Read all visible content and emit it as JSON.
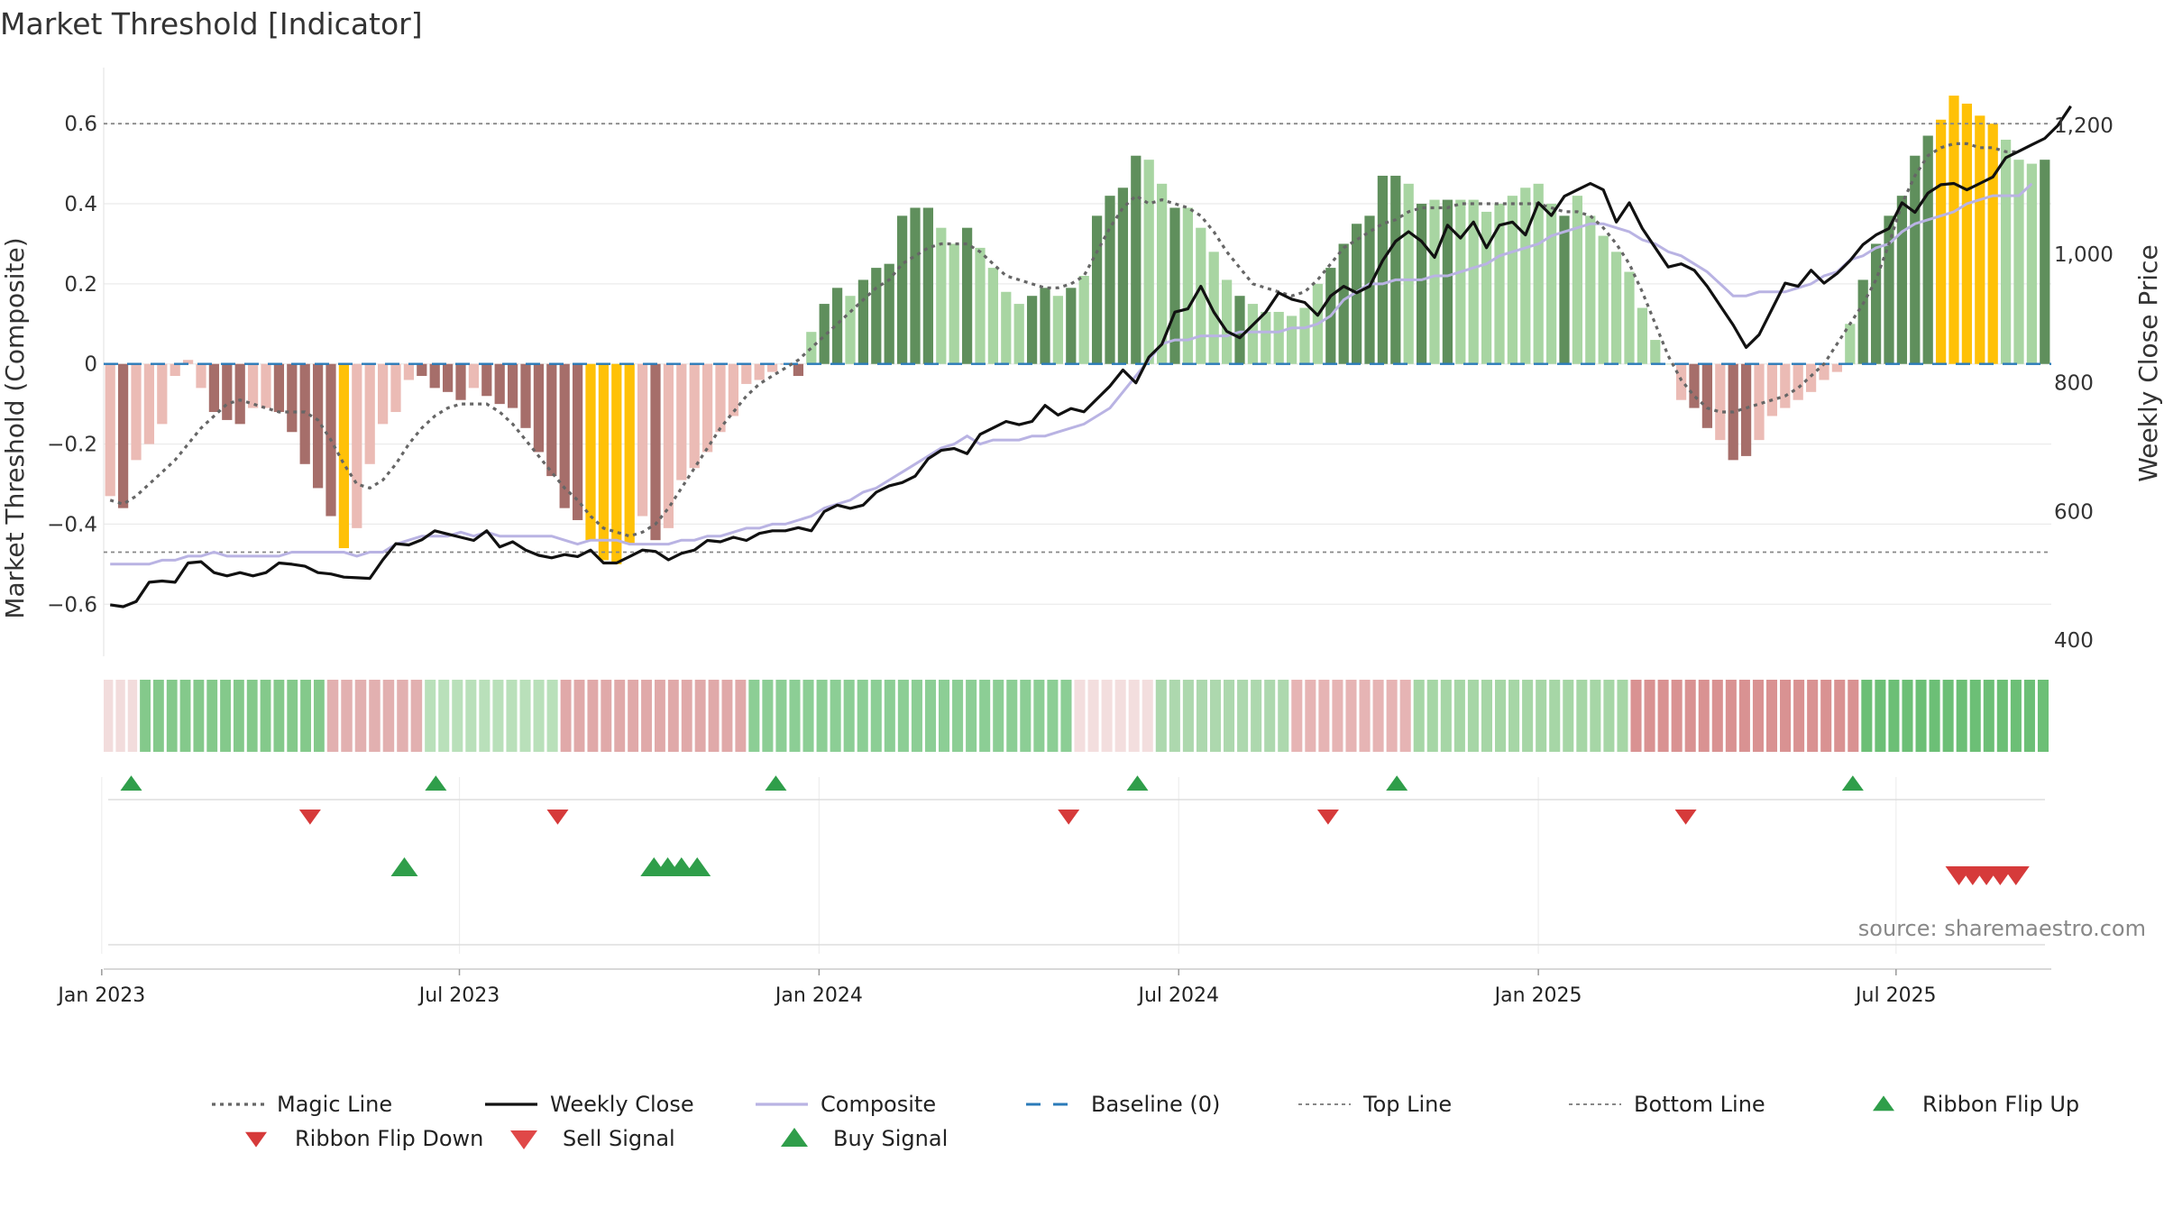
{
  "chart_data": {
    "type": "bar",
    "title": "Market Threshold [Indicator]",
    "ylabel": "Market Threshold (Composite)",
    "y2label": "Weekly Close Price",
    "ylim": [
      -0.73,
      0.74
    ],
    "y2lim": [
      375,
      1290
    ],
    "yticks": [
      -0.6,
      -0.4,
      -0.2,
      0,
      0.2,
      0.4,
      0.6
    ],
    "ytick_labels": [
      "−0.6",
      "−0.4",
      "−0.2",
      "0",
      "0.2",
      "0.4",
      "0.6"
    ],
    "y2ticks": [
      400,
      600,
      800,
      1000,
      1200
    ],
    "y2tick_labels": [
      "400",
      "600",
      "800",
      "1,000",
      "1,200"
    ],
    "x_start": "2023-01-01",
    "x_end": "2025-09-18",
    "xticks": [
      "2022-12-31",
      "2023-07-01",
      "2023-12-31",
      "2024-07-01",
      "2024-12-31",
      "2025-07-01"
    ],
    "xtick_labels": [
      "Jan 2023",
      "Jul 2023",
      "Jan 2024",
      "Jul 2024",
      "Jan 2025",
      "Jul 2025"
    ],
    "top_line": 0.6,
    "bottom_line": -0.47,
    "baseline": 0,
    "grid": true,
    "legend_position": "bottom",
    "source": "source: sharemaestro.com",
    "colors": {
      "bullish_strong": "#5f8f5c",
      "bullish_weak": "#a8d5a2",
      "bearish_strong": "#a66e6a",
      "bearish_weak": "#ebbbb5",
      "extreme": "#ffc107",
      "weekly_close": "#111111",
      "magic_line": "#666666",
      "composite": "#b9b3e3",
      "baseline": "#2b7bb9",
      "buy": "#2f9e4a",
      "sell": "#d63a3a"
    },
    "composite_bars": [
      -0.33,
      -0.36,
      -0.24,
      -0.2,
      -0.15,
      -0.03,
      0.01,
      -0.06,
      -0.12,
      -0.14,
      -0.15,
      -0.11,
      -0.11,
      -0.12,
      -0.17,
      -0.25,
      -0.31,
      -0.38,
      -0.46,
      -0.41,
      -0.25,
      -0.15,
      -0.12,
      -0.04,
      -0.03,
      -0.06,
      -0.07,
      -0.09,
      -0.06,
      -0.08,
      -0.1,
      -0.11,
      -0.16,
      -0.22,
      -0.28,
      -0.36,
      -0.39,
      -0.44,
      -0.49,
      -0.5,
      -0.45,
      -0.38,
      -0.44,
      -0.41,
      -0.29,
      -0.26,
      -0.22,
      -0.17,
      -0.13,
      -0.05,
      -0.04,
      -0.02,
      0.0,
      -0.03,
      0.08,
      0.15,
      0.19,
      0.17,
      0.21,
      0.24,
      0.25,
      0.37,
      0.39,
      0.39,
      0.34,
      0.3,
      0.34,
      0.29,
      0.24,
      0.18,
      0.15,
      0.17,
      0.19,
      0.17,
      0.19,
      0.22,
      0.37,
      0.42,
      0.44,
      0.52,
      0.51,
      0.45,
      0.39,
      0.39,
      0.34,
      0.28,
      0.21,
      0.17,
      0.15,
      0.13,
      0.13,
      0.12,
      0.14,
      0.2,
      0.24,
      0.3,
      0.35,
      0.37,
      0.47,
      0.47,
      0.45,
      0.4,
      0.41,
      0.41,
      0.41,
      0.41,
      0.38,
      0.4,
      0.42,
      0.44,
      0.45,
      0.4,
      0.37,
      0.42,
      0.37,
      0.32,
      0.28,
      0.23,
      0.14,
      0.06,
      0.0,
      -0.09,
      -0.11,
      -0.16,
      -0.19,
      -0.24,
      -0.23,
      -0.19,
      -0.13,
      -0.11,
      -0.09,
      -0.07,
      -0.04,
      -0.02,
      0.1,
      0.21,
      0.3,
      0.37,
      0.42,
      0.52,
      0.57,
      0.61,
      0.67,
      0.65,
      0.62,
      0.6,
      0.56,
      0.51,
      0.5,
      0.51
    ],
    "bar_class": [
      "bw",
      "bs",
      "bw",
      "bw",
      "bw",
      "bw",
      "bw",
      "bw",
      "bs",
      "bs",
      "bs",
      "bw",
      "bw",
      "bs",
      "bs",
      "bs",
      "bs",
      "bs",
      "ex",
      "bw",
      "bw",
      "bw",
      "bw",
      "bw",
      "bs",
      "bs",
      "bs",
      "bs",
      "bw",
      "bs",
      "bs",
      "bs",
      "bs",
      "bs",
      "bs",
      "bs",
      "bs",
      "ex",
      "ex",
      "ex",
      "ex",
      "bw",
      "bs",
      "bw",
      "bw",
      "bw",
      "bw",
      "bw",
      "bw",
      "bw",
      "bw",
      "bw",
      "bs",
      "bs",
      "gw",
      "gs",
      "gs",
      "gw",
      "gs",
      "gs",
      "gs",
      "gs",
      "gs",
      "gs",
      "gw",
      "gw",
      "gs",
      "gw",
      "gw",
      "gw",
      "gw",
      "gs",
      "gs",
      "gw",
      "gs",
      "gw",
      "gs",
      "gs",
      "gs",
      "gs",
      "gw",
      "gw",
      "gs",
      "gw",
      "gw",
      "gw",
      "gw",
      "gs",
      "gw",
      "gw",
      "gw",
      "gw",
      "gw",
      "gw",
      "gs",
      "gs",
      "gs",
      "gs",
      "gs",
      "gs",
      "gw",
      "gs",
      "gw",
      "gs",
      "gw",
      "gw",
      "gw",
      "gw",
      "gw",
      "gw",
      "gw",
      "gw",
      "gs",
      "gw",
      "gw",
      "gw",
      "gw",
      "gw",
      "gw",
      "gw",
      "gw",
      "bw",
      "bs",
      "bs",
      "bw",
      "bs",
      "bs",
      "bw",
      "bw",
      "bw",
      "bw",
      "bw",
      "bw",
      "bw",
      "gw",
      "gs",
      "gs",
      "gs",
      "gs",
      "gs",
      "gs",
      "ex",
      "ex",
      "ex",
      "ex",
      "ex",
      "gw",
      "gw",
      "gw",
      "gs"
    ],
    "magic_line": [
      -0.34,
      -0.35,
      -0.33,
      -0.3,
      -0.27,
      -0.24,
      -0.2,
      -0.16,
      -0.13,
      -0.1,
      -0.09,
      -0.1,
      -0.11,
      -0.12,
      -0.12,
      -0.12,
      -0.14,
      -0.19,
      -0.25,
      -0.3,
      -0.31,
      -0.29,
      -0.25,
      -0.2,
      -0.16,
      -0.13,
      -0.11,
      -0.1,
      -0.1,
      -0.1,
      -0.12,
      -0.15,
      -0.19,
      -0.23,
      -0.27,
      -0.31,
      -0.34,
      -0.38,
      -0.41,
      -0.42,
      -0.43,
      -0.42,
      -0.4,
      -0.36,
      -0.31,
      -0.26,
      -0.21,
      -0.16,
      -0.12,
      -0.08,
      -0.05,
      -0.03,
      -0.01,
      0.01,
      0.04,
      0.07,
      0.1,
      0.13,
      0.16,
      0.19,
      0.21,
      0.25,
      0.27,
      0.29,
      0.3,
      0.3,
      0.3,
      0.28,
      0.25,
      0.22,
      0.21,
      0.2,
      0.19,
      0.19,
      0.2,
      0.22,
      0.28,
      0.34,
      0.39,
      0.42,
      0.4,
      0.41,
      0.4,
      0.39,
      0.37,
      0.33,
      0.28,
      0.24,
      0.2,
      0.19,
      0.18,
      0.17,
      0.18,
      0.21,
      0.25,
      0.29,
      0.31,
      0.33,
      0.35,
      0.36,
      0.38,
      0.39,
      0.39,
      0.39,
      0.4,
      0.4,
      0.4,
      0.4,
      0.4,
      0.4,
      0.4,
      0.39,
      0.38,
      0.38,
      0.37,
      0.34,
      0.3,
      0.25,
      0.18,
      0.1,
      0.02,
      -0.04,
      -0.08,
      -0.11,
      -0.12,
      -0.12,
      -0.11,
      -0.1,
      -0.09,
      -0.08,
      -0.06,
      -0.03,
      0.0,
      0.05,
      0.1,
      0.15,
      0.21,
      0.3,
      0.4,
      0.47,
      0.52,
      0.54,
      0.55,
      0.55,
      0.54,
      0.54,
      0.53,
      0.53
    ],
    "composite_line": [
      -0.5,
      -0.5,
      -0.5,
      -0.5,
      -0.49,
      -0.49,
      -0.48,
      -0.48,
      -0.47,
      -0.48,
      -0.48,
      -0.48,
      -0.48,
      -0.48,
      -0.47,
      -0.47,
      -0.47,
      -0.47,
      -0.47,
      -0.48,
      -0.47,
      -0.47,
      -0.45,
      -0.44,
      -0.43,
      -0.43,
      -0.43,
      -0.42,
      -0.43,
      -0.42,
      -0.43,
      -0.43,
      -0.43,
      -0.43,
      -0.43,
      -0.44,
      -0.45,
      -0.44,
      -0.44,
      -0.44,
      -0.45,
      -0.45,
      -0.45,
      -0.45,
      -0.44,
      -0.44,
      -0.43,
      -0.43,
      -0.42,
      -0.41,
      -0.41,
      -0.4,
      -0.4,
      -0.39,
      -0.38,
      -0.36,
      -0.35,
      -0.34,
      -0.32,
      -0.31,
      -0.29,
      -0.27,
      -0.25,
      -0.23,
      -0.21,
      -0.2,
      -0.18,
      -0.2,
      -0.19,
      -0.19,
      -0.19,
      -0.18,
      -0.18,
      -0.17,
      -0.16,
      -0.15,
      -0.13,
      -0.11,
      -0.07,
      -0.03,
      0.01,
      0.05,
      0.06,
      0.06,
      0.07,
      0.07,
      0.07,
      0.08,
      0.08,
      0.08,
      0.08,
      0.09,
      0.09,
      0.1,
      0.12,
      0.16,
      0.18,
      0.2,
      0.2,
      0.21,
      0.21,
      0.21,
      0.22,
      0.22,
      0.23,
      0.24,
      0.25,
      0.27,
      0.28,
      0.29,
      0.3,
      0.32,
      0.33,
      0.34,
      0.35,
      0.35,
      0.34,
      0.33,
      0.31,
      0.3,
      0.28,
      0.27,
      0.25,
      0.23,
      0.2,
      0.17,
      0.17,
      0.18,
      0.18,
      0.18,
      0.19,
      0.2,
      0.22,
      0.23,
      0.26,
      0.27,
      0.29,
      0.3,
      0.33,
      0.35,
      0.36,
      0.37,
      0.38,
      0.4,
      0.41,
      0.42,
      0.42,
      0.42,
      0.45
    ],
    "weekly_close": [
      455,
      452,
      460,
      490,
      492,
      490,
      520,
      522,
      505,
      500,
      505,
      500,
      505,
      520,
      518,
      515,
      505,
      503,
      498,
      497,
      496,
      525,
      550,
      548,
      556,
      570,
      565,
      560,
      555,
      570,
      545,
      553,
      540,
      532,
      528,
      533,
      530,
      540,
      520,
      520,
      530,
      540,
      538,
      525,
      535,
      540,
      555,
      553,
      560,
      555,
      566,
      570,
      570,
      575,
      570,
      600,
      610,
      605,
      610,
      630,
      640,
      645,
      655,
      682,
      695,
      698,
      690,
      720,
      730,
      740,
      735,
      740,
      765,
      750,
      760,
      755,
      775,
      795,
      820,
      800,
      840,
      860,
      910,
      915,
      950,
      910,
      880,
      870,
      890,
      910,
      940,
      930,
      925,
      905,
      935,
      950,
      940,
      950,
      990,
      1020,
      1035,
      1020,
      995,
      1045,
      1025,
      1050,
      1010,
      1045,
      1050,
      1030,
      1080,
      1060,
      1090,
      1100,
      1110,
      1100,
      1050,
      1080,
      1040,
      1010,
      980,
      985,
      975,
      950,
      920,
      890,
      855,
      875,
      915,
      955,
      950,
      975,
      955,
      970,
      990,
      1015,
      1030,
      1040,
      1080,
      1065,
      1095,
      1108,
      1110,
      1100,
      1110,
      1120,
      1150,
      1160,
      1170,
      1180,
      1200,
      1230
    ],
    "ribbon": [
      {
        "width": 40,
        "color": "#f2dcdc"
      },
      {
        "width": 207,
        "color": "#84c98b"
      },
      {
        "width": 108,
        "color": "#e2b0b0"
      },
      {
        "width": 150,
        "color": "#b9e0ba"
      },
      {
        "width": 208,
        "color": "#e0a9a9"
      },
      {
        "width": 360,
        "color": "#8cce95"
      },
      {
        "width": 90,
        "color": "#f3dede"
      },
      {
        "width": 150,
        "color": "#add8ae"
      },
      {
        "width": 135,
        "color": "#e6b4b4"
      },
      {
        "width": 240,
        "color": "#a6d6a6"
      },
      {
        "width": 255,
        "color": "#d99292"
      },
      {
        "width": 210,
        "color": "#6cbf76"
      }
    ],
    "ribbon_flip_up": [
      "2023-01-15",
      "2023-06-19",
      "2023-12-09",
      "2024-06-10",
      "2024-10-20",
      "2025-06-09"
    ],
    "ribbon_flip_down": [
      "2023-04-16",
      "2023-08-20",
      "2024-05-06",
      "2024-09-15",
      "2025-03-16"
    ],
    "buy_signals": [
      "2023-06-03",
      "2023-10-08",
      "2023-10-15",
      "2023-10-22",
      "2023-10-30"
    ],
    "sell_signals": [
      "2025-08-02",
      "2025-08-09",
      "2025-08-16",
      "2025-08-23",
      "2025-08-31"
    ],
    "legend": [
      {
        "label": "Magic Line",
        "kind": "dotted",
        "color": "#666666"
      },
      {
        "label": "Weekly Close",
        "kind": "line",
        "color": "#111111"
      },
      {
        "label": "Composite",
        "kind": "line",
        "color": "#b9b3e3"
      },
      {
        "label": "Baseline (0)",
        "kind": "dashed",
        "color": "#2b7bb9"
      },
      {
        "label": "Top Line",
        "kind": "dotted-thin",
        "color": "#888888"
      },
      {
        "label": "Bottom Line",
        "kind": "dotted-thin",
        "color": "#888888"
      },
      {
        "label": "Ribbon Flip Up",
        "kind": "tri-up",
        "color": "#2f9e4a"
      },
      {
        "label": "Ribbon Flip Down",
        "kind": "tri-down",
        "color": "#d63a3a"
      },
      {
        "label": "Sell Signal",
        "kind": "tri-down-big",
        "color": "#e04848"
      },
      {
        "label": "Buy Signal",
        "kind": "tri-up-big",
        "color": "#2f9e4a"
      }
    ]
  }
}
